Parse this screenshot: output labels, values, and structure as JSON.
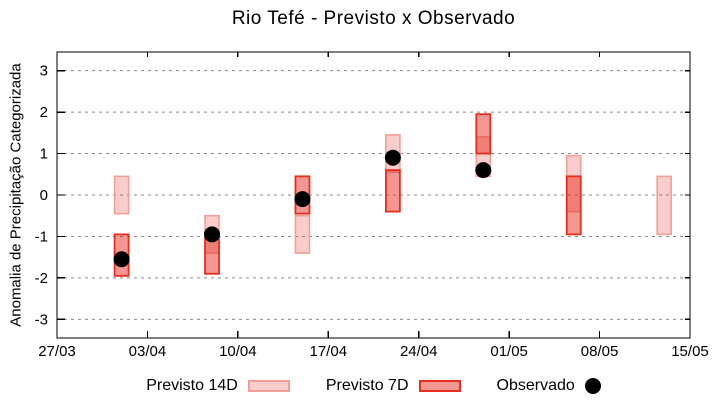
{
  "title": "Rio Tefé - Previsto x Observado",
  "chart_data": {
    "type": "bar",
    "subtype": "forecast-range-boxes-with-observed-dots",
    "title": "Rio Tefé - Previsto x Observado",
    "xlabel": "",
    "ylabel": "Anomalia de Precipitação Categorizada",
    "ylim": [
      -3.45,
      3.45
    ],
    "yticks": [
      3,
      2,
      1,
      0,
      -1,
      -2,
      -3
    ],
    "grid": "horizontal-dashed",
    "xticks": [
      {
        "label": "27/03",
        "day": 0
      },
      {
        "label": "03/04",
        "day": 7
      },
      {
        "label": "10/04",
        "day": 14
      },
      {
        "label": "17/04",
        "day": 21
      },
      {
        "label": "24/04",
        "day": 28
      },
      {
        "label": "01/05",
        "day": 35
      },
      {
        "label": "08/05",
        "day": 42
      },
      {
        "label": "15/05",
        "day": 49
      }
    ],
    "x_day_span": 49,
    "groups": [
      {
        "date": "01/04",
        "day": 5,
        "previsto14d": [
          -0.45,
          0.45
        ],
        "previsto7d": [
          -1.95,
          -0.95
        ],
        "observado": -1.55
      },
      {
        "date": "08/04",
        "day": 12,
        "previsto14d": [
          -1.4,
          -0.5
        ],
        "previsto7d": [
          -1.9,
          -1.0
        ],
        "observado": -0.95
      },
      {
        "date": "15/04",
        "day": 19,
        "previsto14d": [
          -1.4,
          -0.5
        ],
        "previsto7d": [
          -0.45,
          0.45
        ],
        "observado": -0.1
      },
      {
        "date": "22/04",
        "day": 26,
        "previsto14d": [
          0.55,
          1.45
        ],
        "previsto7d": [
          -0.4,
          0.6
        ],
        "observado": 0.9
      },
      {
        "date": "29/04",
        "day": 33,
        "previsto14d": [
          0.45,
          1.4
        ],
        "previsto7d": [
          1.0,
          1.95
        ],
        "observado": 0.6
      },
      {
        "date": "06/05",
        "day": 40,
        "previsto14d": [
          -0.4,
          0.95
        ],
        "previsto7d": [
          -0.95,
          0.45
        ],
        "observado": null
      },
      {
        "date": "13/05",
        "day": 47,
        "previsto14d": [
          -0.95,
          0.45
        ],
        "previsto7d": null,
        "observado": null
      }
    ],
    "legend": [
      {
        "label": "Previsto 14D",
        "type": "box14"
      },
      {
        "label": "Previsto 7D",
        "type": "box7"
      },
      {
        "label": "Observado",
        "type": "dot"
      }
    ],
    "legend_position": "bottom-center"
  },
  "colors": {
    "background": "#ffffff",
    "axis": "#000000",
    "grid": "#8a8a8a",
    "previsto14d_fill": "rgba(232,48,38,0.24)",
    "previsto14d_border": "#f0a098",
    "previsto7d_fill": "rgba(232,48,38,0.50)",
    "previsto7d_border": "#e62e1f",
    "observado_dot": "#000000"
  }
}
